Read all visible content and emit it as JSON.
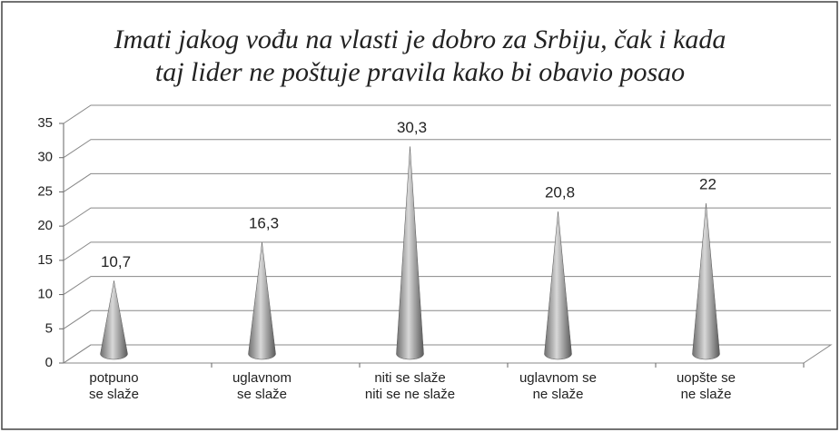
{
  "chart_data": {
    "type": "cone",
    "title": "Imati jakog vođu na vlasti je dobro za Srbiju, čak i kada\ntaj lider ne poštuje pravila kako bi obavio posao",
    "categories": [
      "potpuno\nse slaže",
      "uglavnom\nse slaže",
      "niti se slaže\nniti se ne slaže",
      "uglavnom se\nne slaže",
      "uopšte se\nne slaže"
    ],
    "values": [
      10.7,
      16.3,
      30.3,
      20.8,
      22
    ],
    "value_labels": [
      "10,7",
      "16,3",
      "30,3",
      "20,8",
      "22"
    ],
    "color": "#8c8c8c",
    "ylim": [
      0,
      35
    ],
    "yticks": [
      0,
      5,
      10,
      15,
      20,
      25,
      30,
      35
    ],
    "grid": true
  }
}
